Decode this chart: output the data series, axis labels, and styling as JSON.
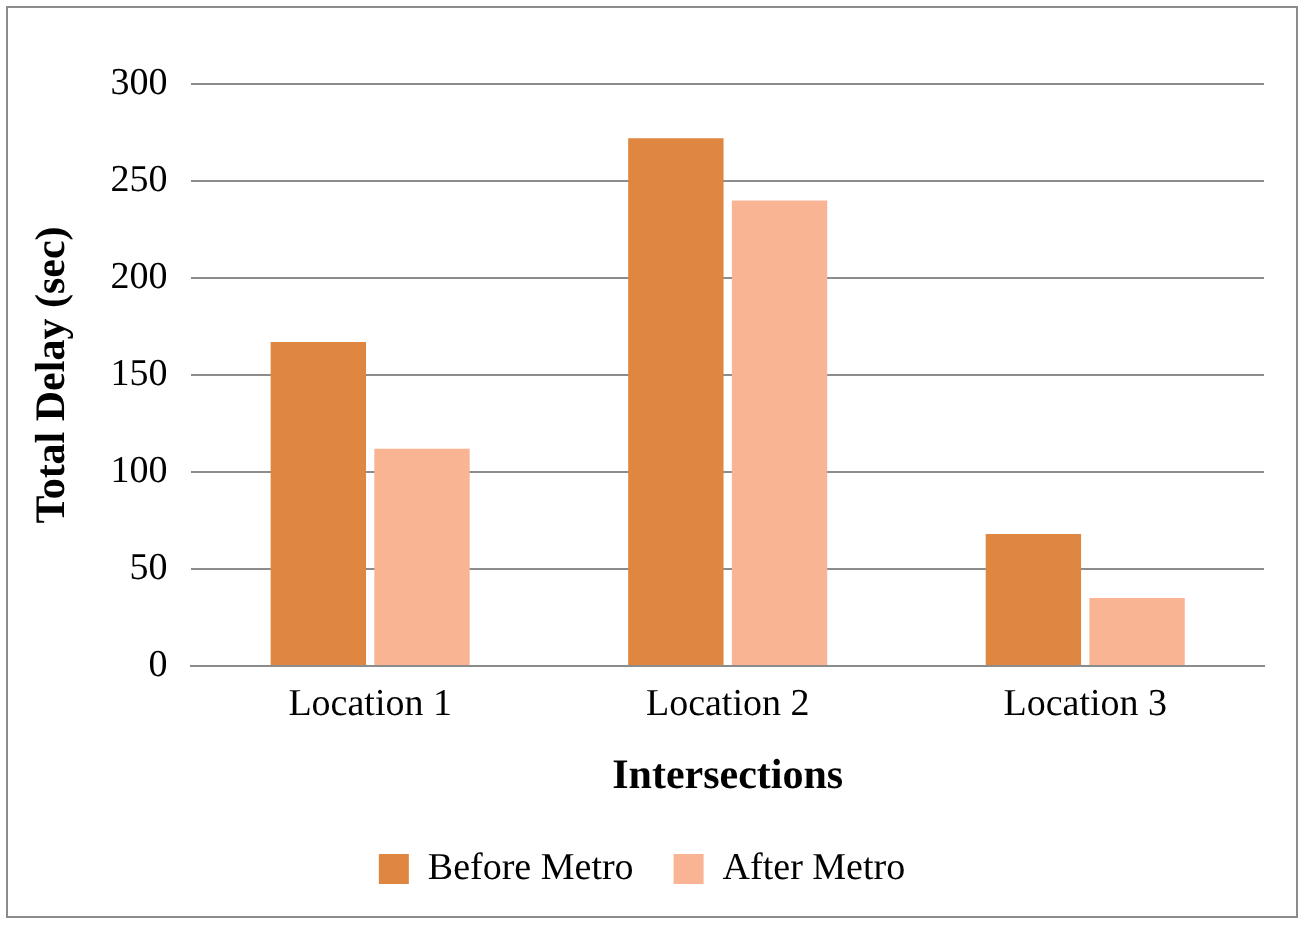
{
  "chart_data": {
    "type": "bar",
    "xlabel": "Intersections",
    "ylabel": "Total Delay (sec)",
    "categories": [
      "Location 1",
      "Location 2",
      "Location 3"
    ],
    "series": [
      {
        "name": "Before Metro",
        "color": "#df8640",
        "values": [
          167,
          272,
          68
        ]
      },
      {
        "name": "After Metro",
        "color": "#f9b593",
        "values": [
          112,
          240,
          35
        ]
      }
    ],
    "ylim": [
      0,
      300
    ],
    "yticks": [
      0,
      50,
      100,
      150,
      200,
      250,
      300
    ],
    "grid": "y",
    "legend": "bottom"
  }
}
